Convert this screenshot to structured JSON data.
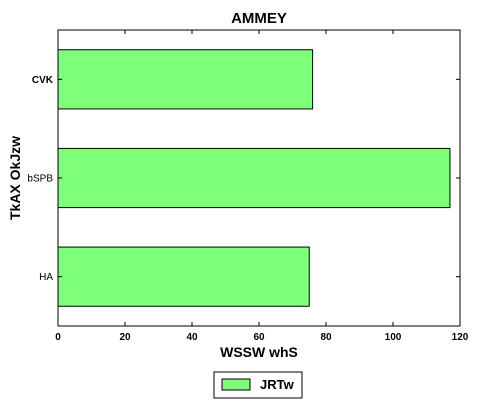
{
  "chart_data": {
    "type": "bar",
    "orientation": "horizontal",
    "title": "AMMEY",
    "xlabel": "WSSW whS",
    "ylabel": "TkAX OkJzw",
    "categories": [
      "HA",
      "bSPB",
      "CVK"
    ],
    "series": [
      {
        "name": "JRTw",
        "values": [
          75,
          117,
          76
        ],
        "color": "#7dff7a"
      }
    ],
    "xlim": [
      0,
      120
    ],
    "xticks": [
      0,
      20,
      40,
      60,
      80,
      100,
      120
    ],
    "grid": false,
    "legend_position": "bottom-center",
    "bold_categories": [
      "CVK"
    ]
  }
}
